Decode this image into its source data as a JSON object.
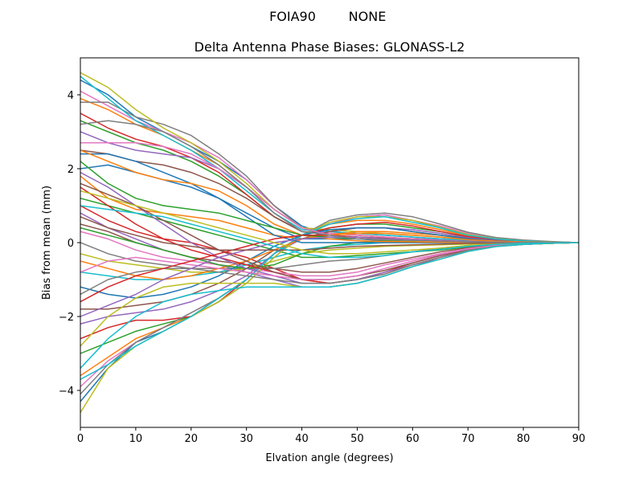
{
  "chart_data": {
    "type": "line",
    "suptitle_left": "FOIA90",
    "suptitle_right": "NONE",
    "title": "Delta Antenna Phase Biases: GLONASS-L2",
    "xlabel": "Elvation angle (degrees)",
    "ylabel": "Bias from mean (mm)",
    "xlim": [
      0,
      90
    ],
    "ylim": [
      -5,
      5
    ],
    "xticks": [
      0,
      10,
      20,
      30,
      40,
      50,
      60,
      70,
      80,
      90
    ],
    "yticks": [
      -4,
      -2,
      0,
      2,
      4
    ],
    "xtick_labels": [
      "0",
      "10",
      "20",
      "30",
      "40",
      "50",
      "60",
      "70",
      "80",
      "90"
    ],
    "ytick_labels": [
      "−4",
      "−2",
      "0",
      "2",
      "4"
    ],
    "grid": false,
    "legend": "none",
    "x": [
      0,
      5,
      10,
      15,
      20,
      25,
      30,
      35,
      40,
      45,
      50,
      55,
      60,
      65,
      70,
      75,
      80,
      85,
      90
    ],
    "series": [
      {
        "color": "#1f77b4",
        "values": [
          4.4,
          4.0,
          3.4,
          3.0,
          2.6,
          2.2,
          1.7,
          1.0,
          0.45,
          0.2,
          0.1,
          0.05,
          0.05,
          0.05,
          0.03,
          0.02,
          0.01,
          0.0,
          0.0
        ]
      },
      {
        "color": "#ff7f0e",
        "values": [
          3.9,
          3.6,
          3.2,
          2.9,
          2.5,
          2.1,
          1.5,
          0.9,
          0.4,
          0.3,
          0.2,
          0.15,
          0.1,
          0.08,
          0.06,
          0.04,
          0.02,
          0.01,
          0.0
        ]
      },
      {
        "color": "#2ca02c",
        "values": [
          3.3,
          3.0,
          2.7,
          2.5,
          2.2,
          1.8,
          1.3,
          0.7,
          0.3,
          0.2,
          0.15,
          0.1,
          0.08,
          0.06,
          0.04,
          0.03,
          0.02,
          0.01,
          0.0
        ]
      },
      {
        "color": "#d62728",
        "values": [
          3.5,
          3.1,
          2.8,
          2.6,
          2.3,
          1.9,
          1.3,
          0.7,
          0.3,
          0.25,
          0.2,
          0.15,
          0.1,
          0.08,
          0.05,
          0.03,
          0.02,
          0.01,
          0.0
        ]
      },
      {
        "color": "#9467bd",
        "values": [
          3.0,
          2.7,
          2.5,
          2.4,
          2.3,
          2.0,
          1.5,
          0.9,
          0.4,
          0.3,
          0.25,
          0.2,
          0.15,
          0.1,
          0.07,
          0.05,
          0.03,
          0.01,
          0.0
        ]
      },
      {
        "color": "#8c564b",
        "values": [
          2.5,
          2.4,
          2.2,
          2.1,
          1.9,
          1.6,
          1.2,
          0.7,
          0.3,
          0.2,
          0.15,
          0.12,
          0.1,
          0.08,
          0.05,
          0.03,
          0.02,
          0.01,
          0.0
        ]
      },
      {
        "color": "#e377c2",
        "values": [
          4.1,
          3.7,
          3.3,
          3.0,
          2.7,
          2.3,
          1.7,
          1.0,
          0.4,
          0.25,
          0.2,
          0.15,
          0.1,
          0.08,
          0.05,
          0.03,
          0.02,
          0.01,
          0.0
        ]
      },
      {
        "color": "#7f7f7f",
        "values": [
          3.8,
          3.8,
          3.4,
          3.2,
          2.9,
          2.4,
          1.8,
          1.0,
          0.4,
          0.3,
          0.25,
          0.2,
          0.15,
          0.1,
          0.07,
          0.05,
          0.03,
          0.01,
          0.0
        ]
      },
      {
        "color": "#bcbd22",
        "values": [
          4.6,
          4.2,
          3.6,
          3.1,
          2.7,
          2.2,
          1.6,
          0.9,
          0.4,
          0.35,
          0.3,
          0.25,
          0.2,
          0.15,
          0.1,
          0.06,
          0.03,
          0.01,
          0.0
        ]
      },
      {
        "color": "#17becf",
        "values": [
          4.5,
          3.9,
          3.3,
          2.9,
          2.5,
          2.0,
          1.4,
          0.8,
          0.35,
          0.3,
          0.25,
          0.2,
          0.15,
          0.1,
          0.07,
          0.05,
          0.03,
          0.01,
          0.0
        ]
      },
      {
        "color": "#1f77b4",
        "values": [
          2.0,
          2.1,
          1.9,
          1.7,
          1.5,
          1.2,
          0.8,
          0.4,
          0.1,
          0.1,
          0.1,
          0.08,
          0.06,
          0.05,
          0.03,
          0.02,
          0.01,
          0.0,
          0.0
        ]
      },
      {
        "color": "#ff7f0e",
        "values": [
          1.8,
          1.2,
          0.9,
          0.8,
          0.7,
          0.6,
          0.4,
          0.2,
          0.1,
          0.2,
          0.3,
          0.3,
          0.25,
          0.2,
          0.12,
          0.08,
          0.04,
          0.02,
          0.0
        ]
      },
      {
        "color": "#2ca02c",
        "values": [
          1.2,
          1.0,
          0.8,
          0.6,
          0.4,
          0.2,
          0.0,
          -0.2,
          -0.4,
          -0.4,
          -0.35,
          -0.3,
          -0.25,
          -0.2,
          -0.12,
          -0.08,
          -0.04,
          -0.02,
          0.0
        ]
      },
      {
        "color": "#d62728",
        "values": [
          1.0,
          0.6,
          0.3,
          0.1,
          0.0,
          -0.2,
          -0.4,
          -0.7,
          -1.0,
          -1.1,
          -1.0,
          -0.8,
          -0.55,
          -0.35,
          -0.2,
          -0.1,
          -0.05,
          -0.02,
          0.0
        ]
      },
      {
        "color": "#9467bd",
        "values": [
          0.8,
          0.4,
          0.1,
          -0.2,
          -0.4,
          -0.6,
          -0.8,
          -1.0,
          -1.2,
          -1.2,
          -1.1,
          -0.9,
          -0.65,
          -0.4,
          -0.22,
          -0.1,
          -0.05,
          -0.02,
          0.0
        ]
      },
      {
        "color": "#8c564b",
        "values": [
          0.5,
          0.3,
          0.0,
          -0.2,
          -0.4,
          -0.5,
          -0.6,
          -0.7,
          -0.8,
          -0.8,
          -0.7,
          -0.55,
          -0.4,
          -0.25,
          -0.14,
          -0.07,
          -0.03,
          -0.01,
          0.0
        ]
      },
      {
        "color": "#e377c2",
        "values": [
          0.3,
          0.1,
          -0.2,
          -0.4,
          -0.5,
          -0.6,
          -0.7,
          -0.8,
          -0.9,
          -0.9,
          -0.8,
          -0.6,
          -0.45,
          -0.3,
          -0.16,
          -0.08,
          -0.04,
          -0.01,
          0.0
        ]
      },
      {
        "color": "#7f7f7f",
        "values": [
          0.0,
          -0.3,
          -0.5,
          -0.6,
          -0.7,
          -0.7,
          -0.7,
          -0.7,
          -0.6,
          -0.5,
          -0.45,
          -0.35,
          -0.25,
          -0.15,
          -0.08,
          -0.04,
          -0.02,
          -0.01,
          0.0
        ]
      },
      {
        "color": "#bcbd22",
        "values": [
          -0.3,
          -0.5,
          -0.6,
          -0.7,
          -0.8,
          -0.8,
          -0.7,
          -0.5,
          -0.3,
          -0.2,
          -0.15,
          -0.1,
          -0.08,
          -0.06,
          -0.04,
          -0.02,
          -0.01,
          0.0,
          0.0
        ]
      },
      {
        "color": "#17becf",
        "values": [
          -0.8,
          -0.9,
          -1.0,
          -1.0,
          -0.9,
          -0.8,
          -0.6,
          -0.4,
          -0.2,
          -0.1,
          -0.05,
          0.0,
          0.0,
          0.0,
          0.0,
          0.0,
          0.0,
          0.0,
          0.0
        ]
      },
      {
        "color": "#1f77b4",
        "values": [
          -4.3,
          -3.4,
          -2.7,
          -2.4,
          -2.0,
          -1.6,
          -1.1,
          -0.4,
          0.2,
          0.5,
          0.7,
          0.75,
          0.6,
          0.4,
          0.2,
          0.1,
          0.05,
          0.02,
          0.0
        ]
      },
      {
        "color": "#ff7f0e",
        "values": [
          -3.6,
          -3.1,
          -2.6,
          -2.3,
          -2.0,
          -1.5,
          -1.0,
          -0.3,
          0.2,
          0.5,
          0.6,
          0.6,
          0.5,
          0.35,
          0.18,
          0.09,
          0.04,
          0.02,
          0.0
        ]
      },
      {
        "color": "#2ca02c",
        "values": [
          -3.0,
          -2.7,
          -2.4,
          -2.2,
          -2.0,
          -1.5,
          -1.0,
          -0.3,
          0.2,
          0.4,
          0.5,
          0.5,
          0.4,
          0.3,
          0.15,
          0.08,
          0.04,
          0.02,
          0.0
        ]
      },
      {
        "color": "#d62728",
        "values": [
          -2.6,
          -2.3,
          -2.1,
          -2.1,
          -2.0,
          -1.6,
          -1.0,
          -0.3,
          0.2,
          0.4,
          0.5,
          0.55,
          0.45,
          0.3,
          0.16,
          0.08,
          0.04,
          0.02,
          0.0
        ]
      },
      {
        "color": "#9467bd",
        "values": [
          -2.2,
          -2.0,
          -1.9,
          -1.8,
          -1.6,
          -1.3,
          -0.9,
          -0.3,
          0.1,
          0.3,
          0.4,
          0.4,
          0.35,
          0.25,
          0.13,
          0.06,
          0.03,
          0.01,
          0.0
        ]
      },
      {
        "color": "#8c564b",
        "values": [
          -1.8,
          -1.8,
          -1.7,
          -1.6,
          -1.4,
          -1.1,
          -0.7,
          -0.2,
          0.1,
          0.3,
          0.4,
          0.4,
          0.3,
          0.2,
          0.11,
          0.05,
          0.03,
          0.01,
          0.0
        ]
      },
      {
        "color": "#e377c2",
        "values": [
          -3.9,
          -3.2,
          -2.7,
          -2.3,
          -1.9,
          -1.5,
          -1.0,
          -0.3,
          0.2,
          0.5,
          0.7,
          0.75,
          0.6,
          0.45,
          0.25,
          0.12,
          0.06,
          0.02,
          0.0
        ]
      },
      {
        "color": "#7f7f7f",
        "values": [
          -4.1,
          -3.3,
          -2.7,
          -2.3,
          -1.9,
          -1.5,
          -1.0,
          -0.3,
          0.2,
          0.6,
          0.75,
          0.8,
          0.7,
          0.5,
          0.28,
          0.14,
          0.07,
          0.03,
          0.0
        ]
      },
      {
        "color": "#bcbd22",
        "values": [
          -4.6,
          -3.4,
          -2.8,
          -2.4,
          -2.0,
          -1.6,
          -1.1,
          -0.4,
          0.2,
          0.55,
          0.7,
          0.7,
          0.6,
          0.42,
          0.22,
          0.11,
          0.05,
          0.02,
          0.0
        ]
      },
      {
        "color": "#17becf",
        "values": [
          -3.7,
          -3.3,
          -2.8,
          -2.4,
          -2.0,
          -1.5,
          -1.0,
          -0.3,
          0.2,
          0.5,
          0.65,
          0.7,
          0.55,
          0.4,
          0.2,
          0.1,
          0.05,
          0.02,
          0.0
        ]
      },
      {
        "color": "#1f77b4",
        "values": [
          -1.2,
          -1.4,
          -1.5,
          -1.4,
          -1.2,
          -0.9,
          -0.5,
          -0.1,
          0.2,
          0.35,
          0.4,
          0.4,
          0.3,
          0.2,
          0.1,
          0.05,
          0.02,
          0.01,
          0.0
        ]
      },
      {
        "color": "#ff7f0e",
        "values": [
          -0.5,
          -0.7,
          -0.9,
          -1.0,
          -0.9,
          -0.7,
          -0.5,
          -0.2,
          0.1,
          0.2,
          0.25,
          0.25,
          0.2,
          0.15,
          0.08,
          0.04,
          0.02,
          0.01,
          0.0
        ]
      },
      {
        "color": "#2ca02c",
        "values": [
          0.4,
          0.2,
          0.0,
          -0.2,
          -0.4,
          -0.6,
          -0.7,
          -0.6,
          -0.3,
          -0.1,
          0.0,
          0.05,
          0.05,
          0.04,
          0.02,
          0.01,
          0.0,
          0.0,
          0.0
        ]
      },
      {
        "color": "#d62728",
        "values": [
          1.5,
          1.0,
          0.5,
          0.1,
          -0.2,
          -0.4,
          -0.6,
          -0.8,
          -1.0,
          -1.1,
          -1.0,
          -0.85,
          -0.6,
          -0.4,
          -0.22,
          -0.1,
          -0.05,
          -0.02,
          0.0
        ]
      },
      {
        "color": "#9467bd",
        "values": [
          1.9,
          1.5,
          1.0,
          0.5,
          0.0,
          -0.4,
          -0.7,
          -0.9,
          -1.1,
          -1.1,
          -1.0,
          -0.8,
          -0.6,
          -0.4,
          -0.22,
          -0.1,
          -0.05,
          -0.02,
          0.0
        ]
      },
      {
        "color": "#8c564b",
        "values": [
          1.6,
          1.3,
          1.0,
          0.6,
          0.2,
          -0.2,
          -0.5,
          -0.8,
          -1.0,
          -1.0,
          -0.9,
          -0.75,
          -0.55,
          -0.35,
          -0.19,
          -0.09,
          -0.04,
          -0.02,
          0.0
        ]
      },
      {
        "color": "#e377c2",
        "values": [
          -0.8,
          -0.5,
          -0.4,
          -0.5,
          -0.6,
          -0.7,
          -0.8,
          -0.9,
          -1.0,
          -1.0,
          -0.9,
          -0.7,
          -0.5,
          -0.32,
          -0.17,
          -0.08,
          -0.04,
          -0.01,
          0.0
        ]
      },
      {
        "color": "#7f7f7f",
        "values": [
          -1.4,
          -1.0,
          -0.8,
          -0.7,
          -0.7,
          -0.8,
          -0.9,
          -1.0,
          -1.1,
          -1.1,
          -1.0,
          -0.85,
          -0.6,
          -0.4,
          -0.21,
          -0.1,
          -0.05,
          -0.02,
          0.0
        ]
      },
      {
        "color": "#bcbd22",
        "values": [
          -2.8,
          -2.0,
          -1.5,
          -1.2,
          -1.1,
          -1.1,
          -1.1,
          -1.1,
          -1.2,
          -1.2,
          -1.1,
          -0.9,
          -0.65,
          -0.45,
          -0.24,
          -0.11,
          -0.05,
          -0.02,
          0.0
        ]
      },
      {
        "color": "#17becf",
        "values": [
          -3.4,
          -2.6,
          -2.0,
          -1.6,
          -1.4,
          -1.3,
          -1.2,
          -1.2,
          -1.2,
          -1.2,
          -1.1,
          -0.9,
          -0.65,
          -0.45,
          -0.24,
          -0.11,
          -0.05,
          -0.02,
          0.0
        ]
      },
      {
        "color": "#1f77b4",
        "values": [
          2.4,
          2.4,
          2.2,
          1.9,
          1.6,
          1.2,
          0.7,
          0.2,
          0.0,
          0.0,
          0.0,
          0.0,
          0.0,
          0.0,
          0.0,
          0.0,
          0.0,
          0.0,
          0.0
        ]
      },
      {
        "color": "#ff7f0e",
        "values": [
          2.5,
          2.2,
          1.9,
          1.7,
          1.6,
          1.4,
          1.0,
          0.5,
          0.2,
          0.1,
          0.05,
          0.03,
          0.02,
          0.01,
          0.0,
          0.0,
          0.0,
          0.0,
          0.0
        ]
      },
      {
        "color": "#2ca02c",
        "values": [
          2.2,
          1.6,
          1.2,
          1.0,
          0.9,
          0.8,
          0.6,
          0.4,
          0.2,
          0.15,
          0.1,
          0.08,
          0.06,
          0.04,
          0.02,
          0.01,
          0.0,
          0.0,
          0.0
        ]
      },
      {
        "color": "#d62728",
        "values": [
          -1.6,
          -1.2,
          -0.9,
          -0.7,
          -0.5,
          -0.3,
          -0.1,
          0.1,
          0.2,
          0.2,
          0.15,
          0.1,
          0.08,
          0.05,
          0.03,
          0.01,
          0.0,
          0.0,
          0.0
        ]
      },
      {
        "color": "#9467bd",
        "values": [
          -2.0,
          -1.7,
          -1.4,
          -1.0,
          -0.7,
          -0.4,
          -0.2,
          0.0,
          0.1,
          0.15,
          0.15,
          0.1,
          0.08,
          0.05,
          0.03,
          0.01,
          0.0,
          0.0,
          0.0
        ]
      },
      {
        "color": "#8c564b",
        "values": [
          0.7,
          0.4,
          0.2,
          0.0,
          -0.1,
          -0.2,
          -0.2,
          -0.2,
          -0.2,
          -0.15,
          -0.1,
          -0.08,
          -0.06,
          -0.04,
          -0.02,
          -0.01,
          0.0,
          0.0,
          0.0
        ]
      },
      {
        "color": "#e377c2",
        "values": [
          2.7,
          2.7,
          2.7,
          2.6,
          2.4,
          2.0,
          1.5,
          0.9,
          0.4,
          0.2,
          0.1,
          0.08,
          0.06,
          0.04,
          0.02,
          0.01,
          0.0,
          0.0,
          0.0
        ]
      },
      {
        "color": "#7f7f7f",
        "values": [
          3.2,
          3.3,
          3.2,
          3.0,
          2.6,
          2.1,
          1.5,
          0.8,
          0.3,
          0.2,
          0.1,
          0.08,
          0.06,
          0.04,
          0.02,
          0.01,
          0.0,
          0.0,
          0.0
        ]
      },
      {
        "color": "#bcbd22",
        "values": [
          1.4,
          1.2,
          1.0,
          0.8,
          0.6,
          0.4,
          0.2,
          0.0,
          -0.2,
          -0.3,
          -0.3,
          -0.25,
          -0.2,
          -0.15,
          -0.08,
          -0.04,
          -0.02,
          -0.01,
          0.0
        ]
      },
      {
        "color": "#17becf",
        "values": [
          1.0,
          0.9,
          0.8,
          0.7,
          0.5,
          0.3,
          0.1,
          -0.1,
          -0.3,
          -0.4,
          -0.4,
          -0.35,
          -0.25,
          -0.18,
          -0.1,
          -0.05,
          -0.02,
          -0.01,
          0.0
        ]
      }
    ]
  }
}
